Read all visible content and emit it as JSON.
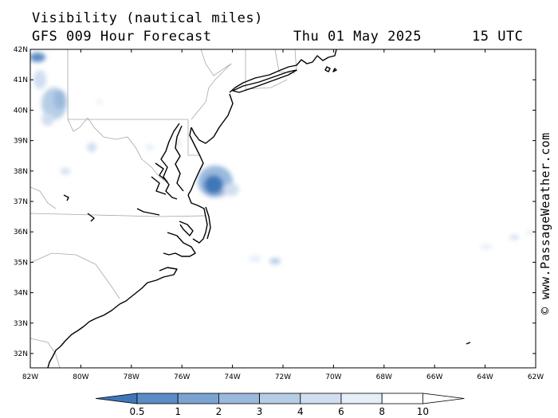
{
  "header": {
    "title": "Visibility (nautical miles)",
    "subtitle": "GFS 009 Hour Forecast",
    "date": "Thu 01 May 2025",
    "time": "15 UTC"
  },
  "credit": "© www.PassageWeather.com",
  "axes": {
    "lat_ticks": [
      "42N",
      "41N",
      "40N",
      "39N",
      "38N",
      "37N",
      "36N",
      "35N",
      "34N",
      "33N",
      "32N"
    ],
    "lon_ticks": [
      "82W",
      "80W",
      "78W",
      "76W",
      "74W",
      "72W",
      "70W",
      "68W",
      "66W",
      "64W",
      "62W"
    ]
  },
  "legend": {
    "labels": [
      "0.5",
      "1",
      "2",
      "3",
      "4",
      "6",
      "8",
      "10"
    ],
    "colors": [
      "#3f77b8",
      "#5b8cc6",
      "#7ba3d2",
      "#9ab9dd",
      "#b6cde6",
      "#d0def0",
      "#e6eef8",
      "#ffffff"
    ]
  }
}
